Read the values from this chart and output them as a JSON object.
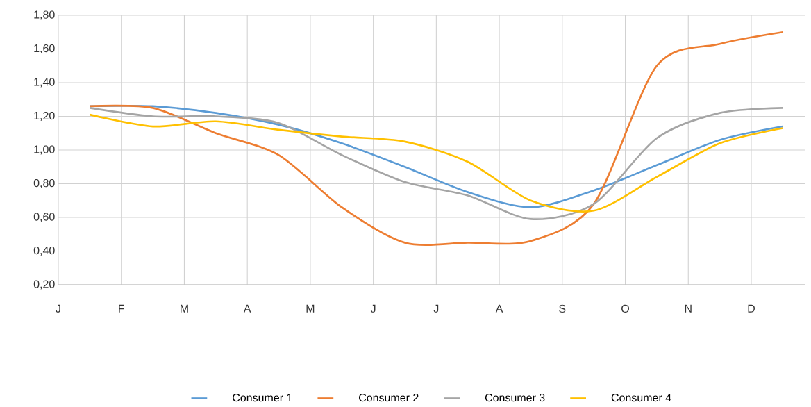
{
  "chart_data": {
    "type": "line",
    "categories": [
      "J",
      null,
      "F",
      null,
      "M",
      null,
      "A",
      null,
      "M",
      null,
      "J",
      null,
      "J",
      null,
      "A",
      null,
      "S",
      null,
      "O",
      null,
      "N",
      null,
      "D",
      null
    ],
    "ylim": [
      0.2,
      1.8
    ],
    "yticks": [
      {
        "value": 0.2,
        "label": "0,20"
      },
      {
        "value": 0.4,
        "label": "0,40"
      },
      {
        "value": 0.6,
        "label": "0,60"
      },
      {
        "value": 0.8,
        "label": "0,80"
      },
      {
        "value": 1.0,
        "label": "1,00"
      },
      {
        "value": 1.2,
        "label": "1,20"
      },
      {
        "value": 1.4,
        "label": "1,40"
      },
      {
        "value": 1.6,
        "label": "1,60"
      },
      {
        "value": 1.8,
        "label": "1,80"
      }
    ],
    "grid": true,
    "legend": "bottom",
    "line_style": "solid",
    "series": [
      {
        "name": "Consumer  1",
        "color": "#5b9bd5",
        "values": [
          null,
          1.26,
          null,
          1.26,
          null,
          1.22,
          null,
          1.15,
          null,
          1.04,
          null,
          0.9,
          null,
          0.75,
          null,
          0.66,
          null,
          0.76,
          null,
          0.91,
          null,
          1.06,
          null,
          1.14
        ]
      },
      {
        "name": "Consumer  2",
        "color": "#ed7d31",
        "values": [
          null,
          1.26,
          null,
          1.25,
          null,
          1.1,
          null,
          0.97,
          null,
          0.66,
          null,
          0.45,
          null,
          0.45,
          null,
          0.46,
          null,
          0.68,
          null,
          1.5,
          null,
          1.63,
          null,
          1.7
        ]
      },
      {
        "name": "Consumer  3",
        "color": "#a5a5a5",
        "values": [
          null,
          1.25,
          null,
          1.2,
          null,
          1.2,
          null,
          1.16,
          null,
          0.97,
          null,
          0.81,
          null,
          0.73,
          null,
          0.59,
          null,
          0.68,
          null,
          1.07,
          null,
          1.22,
          null,
          1.25
        ]
      },
      {
        "name": "Consumer  4",
        "color": "#ffc000",
        "values": [
          null,
          1.21,
          null,
          1.14,
          null,
          1.17,
          null,
          1.12,
          null,
          1.08,
          null,
          1.05,
          null,
          0.93,
          null,
          0.7,
          null,
          0.64,
          null,
          0.84,
          null,
          1.04,
          null,
          1.13
        ]
      }
    ]
  }
}
